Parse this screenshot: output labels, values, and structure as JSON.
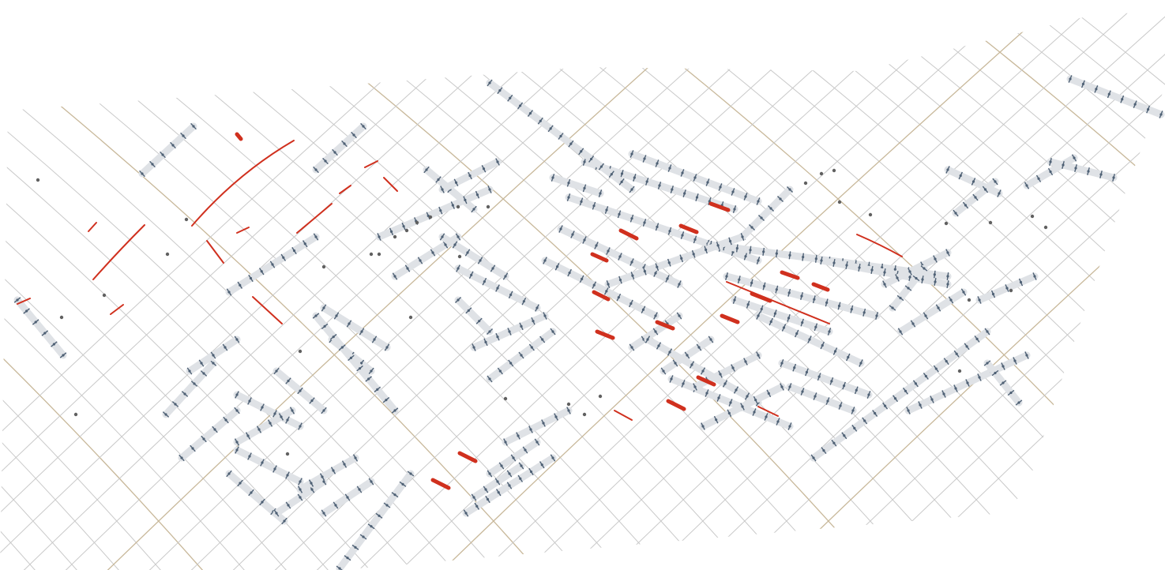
{
  "diagram": {
    "kind": "curved-gridshell-structural-diagram",
    "grid_family_a_count": 40,
    "grid_family_b_count": 40,
    "highlighted_family_a": [
      4,
      12,
      20,
      28,
      36
    ],
    "highlighted_family_b": [
      6,
      14,
      22,
      30
    ],
    "colors": {
      "background": "#ffffff",
      "grid_line": "#c9c9c9",
      "grid_line_highlight": "#c8b89a",
      "member_bar": "#dfe2e6",
      "member_node": "#4f6175",
      "stressed_member": "#d0301e",
      "node_dot": "#606060"
    },
    "icons": [
      "node-marker",
      "member-bar",
      "stressed-member"
    ]
  }
}
